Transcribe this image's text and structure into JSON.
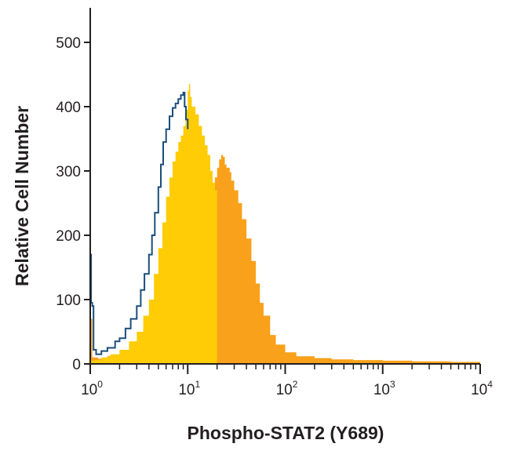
{
  "chart_data": {
    "type": "area",
    "title": "",
    "xlabel": "Phospho-STAT2 (Y689)",
    "ylabel": "Relative Cell Number",
    "x_scale": "log",
    "xlim": [
      1,
      10000
    ],
    "ylim": [
      0,
      550
    ],
    "grid": false,
    "legend": "none",
    "x_ticks": [
      {
        "base": "10",
        "exp": "0",
        "value": 1
      },
      {
        "base": "10",
        "exp": "1",
        "value": 10
      },
      {
        "base": "10",
        "exp": "2",
        "value": 100
      },
      {
        "base": "10",
        "exp": "3",
        "value": 1000
      },
      {
        "base": "10",
        "exp": "4",
        "value": 10000
      }
    ],
    "y_ticks": [
      {
        "label": "0",
        "value": 0
      },
      {
        "label": "100",
        "value": 100
      },
      {
        "label": "200",
        "value": 200
      },
      {
        "label": "300",
        "value": 300
      },
      {
        "label": "400",
        "value": 400
      },
      {
        "label": "500",
        "value": 500
      }
    ],
    "series": [
      {
        "style": "filled",
        "color": "#f9a11b",
        "points": [
          [
            1.0,
            70
          ],
          [
            1.03,
            70
          ],
          [
            1.05,
            10
          ],
          [
            1.2,
            8
          ],
          [
            1.5,
            12
          ],
          [
            2,
            20
          ],
          [
            3,
            35
          ],
          [
            4,
            55
          ],
          [
            5,
            80
          ],
          [
            6,
            105
          ],
          [
            7,
            125
          ],
          [
            8,
            145
          ],
          [
            9,
            160
          ],
          [
            10,
            175
          ],
          [
            11,
            190
          ],
          [
            12,
            205
          ],
          [
            13,
            225
          ],
          [
            14,
            240
          ],
          [
            15,
            255
          ],
          [
            16,
            262
          ],
          [
            17,
            268
          ],
          [
            18,
            275
          ],
          [
            19,
            290
          ],
          [
            20,
            305
          ],
          [
            21,
            318
          ],
          [
            22,
            325
          ],
          [
            23,
            322
          ],
          [
            24,
            310
          ],
          [
            25,
            305
          ],
          [
            27,
            298
          ],
          [
            28,
            285
          ],
          [
            30,
            270
          ],
          [
            33,
            250
          ],
          [
            36,
            225
          ],
          [
            40,
            195
          ],
          [
            45,
            160
          ],
          [
            50,
            125
          ],
          [
            55,
            95
          ],
          [
            60,
            75
          ],
          [
            70,
            45
          ],
          [
            80,
            30
          ],
          [
            100,
            18
          ],
          [
            130,
            12
          ],
          [
            200,
            9
          ],
          [
            300,
            7
          ],
          [
            500,
            6
          ],
          [
            1000,
            5
          ],
          [
            2000,
            4
          ],
          [
            5000,
            3
          ],
          [
            10000,
            2
          ]
        ]
      },
      {
        "style": "filled",
        "color": "#ffcc05",
        "points": [
          [
            1.0,
            5
          ],
          [
            1.1,
            6
          ],
          [
            1.3,
            10
          ],
          [
            1.6,
            15
          ],
          [
            2,
            22
          ],
          [
            2.5,
            35
          ],
          [
            3,
            50
          ],
          [
            3.5,
            75
          ],
          [
            4,
            100
          ],
          [
            4.5,
            140
          ],
          [
            5,
            180
          ],
          [
            5.5,
            220
          ],
          [
            6,
            260
          ],
          [
            6.5,
            290
          ],
          [
            7,
            315
          ],
          [
            7.5,
            330
          ],
          [
            8,
            345
          ],
          [
            8.5,
            355
          ],
          [
            9,
            370
          ],
          [
            9.5,
            395
          ],
          [
            10,
            425
          ],
          [
            10.3,
            435
          ],
          [
            10.6,
            415
          ],
          [
            11,
            400
          ],
          [
            12,
            388
          ],
          [
            13,
            370
          ],
          [
            14,
            355
          ],
          [
            15,
            340
          ],
          [
            16,
            325
          ],
          [
            17,
            300
          ],
          [
            18,
            282
          ],
          [
            19,
            270
          ],
          [
            20,
            262
          ]
        ]
      },
      {
        "style": "outline",
        "color": "#1b4e7c",
        "points": [
          [
            1.0,
            170
          ],
          [
            1.02,
            95
          ],
          [
            1.05,
            90
          ],
          [
            1.08,
            22
          ],
          [
            1.15,
            15
          ],
          [
            1.3,
            20
          ],
          [
            1.5,
            25
          ],
          [
            1.8,
            35
          ],
          [
            2,
            40
          ],
          [
            2.3,
            55
          ],
          [
            2.6,
            70
          ],
          [
            3,
            90
          ],
          [
            3.3,
            115
          ],
          [
            3.6,
            140
          ],
          [
            4,
            170
          ],
          [
            4.3,
            200
          ],
          [
            4.6,
            235
          ],
          [
            5,
            275
          ],
          [
            5.3,
            310
          ],
          [
            5.6,
            345
          ],
          [
            6,
            365
          ],
          [
            6.5,
            385
          ],
          [
            7,
            398
          ],
          [
            7.5,
            405
          ],
          [
            8,
            412
          ],
          [
            8.5,
            418
          ],
          [
            9,
            422
          ],
          [
            9.3,
            400
          ],
          [
            9.6,
            380
          ],
          [
            10,
            365
          ]
        ]
      }
    ]
  }
}
